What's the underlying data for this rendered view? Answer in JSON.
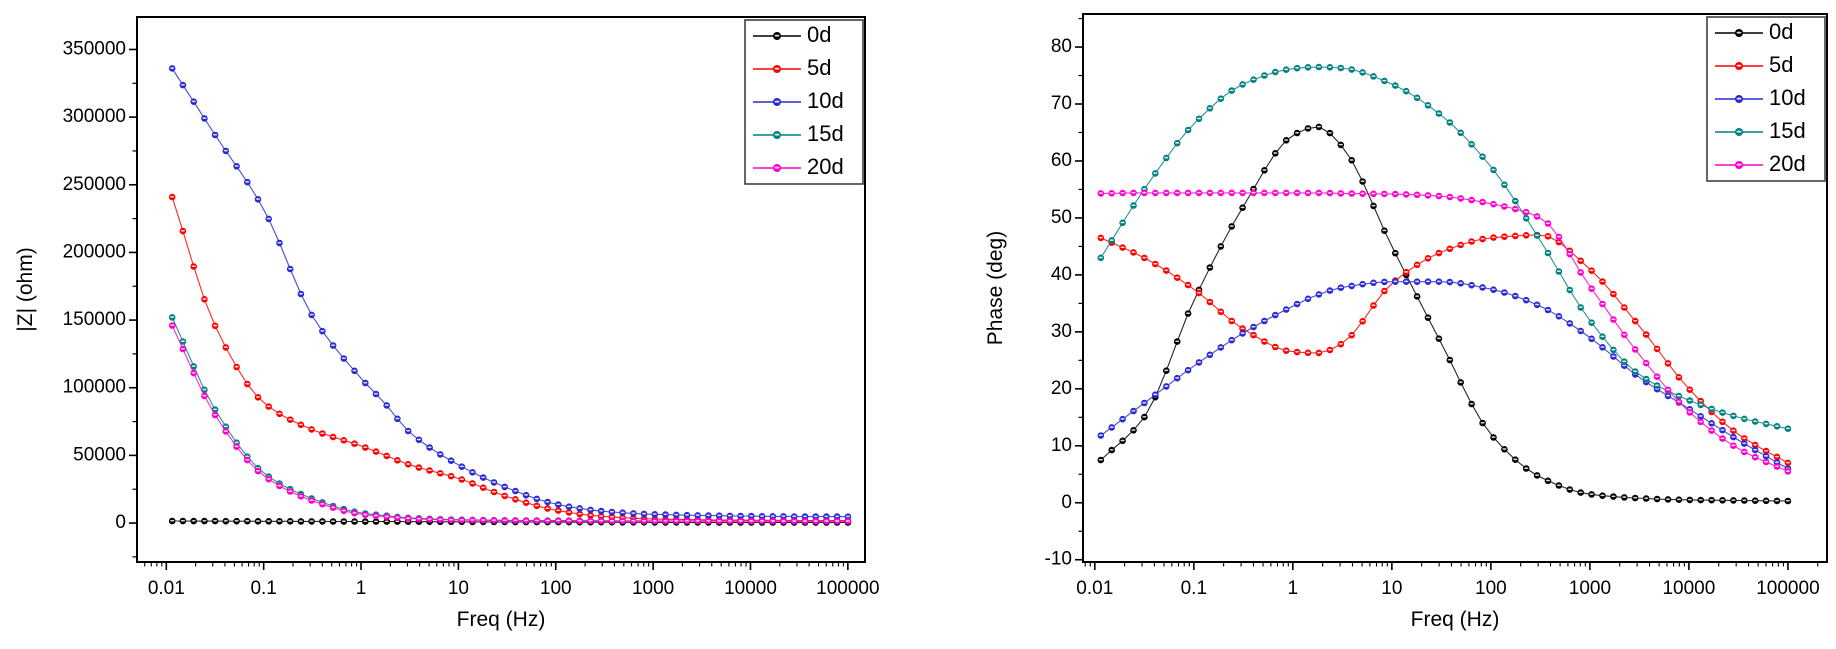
{
  "figure": {
    "background": "#ffffff",
    "series_labels": [
      "0d",
      "5d",
      "10d",
      "15d",
      "20d"
    ],
    "series_colors": [
      "#000000",
      "#ff0000",
      "#2a2ad0",
      "#008080",
      "#ff00cc"
    ]
  },
  "chart_data": [
    {
      "type": "line",
      "title": "",
      "xlabel": "Freq (Hz)",
      "ylabel": "|Z| (ohm)",
      "xscale": "log",
      "xlim": [
        0.005,
        150000
      ],
      "ylim": [
        -28800,
        374000
      ],
      "xticks": [
        0.01,
        0.1,
        1,
        10,
        100,
        1000,
        10000,
        100000
      ],
      "yticks": [
        0,
        50000,
        100000,
        150000,
        200000,
        250000,
        300000,
        350000
      ],
      "grid": false,
      "legend_position": "top-right",
      "x": [
        0.0115,
        0.0316,
        0.1,
        0.316,
        1,
        1.78,
        3.16,
        10,
        31.6,
        100,
        316,
        1000,
        3160,
        10000,
        31600,
        100000
      ],
      "series": [
        {
          "name": "0d",
          "color": "#000000",
          "values": [
            1500,
            1400,
            1300,
            1200,
            1100,
            1050,
            1000,
            900,
            800,
            700,
            600,
            500,
            450,
            400,
            380,
            360
          ]
        },
        {
          "name": "5d",
          "color": "#ff0000",
          "values": [
            241000,
            146000,
            89000,
            69000,
            57000,
            50000,
            43000,
            33000,
            19500,
            9500,
            4800,
            3000,
            2400,
            2100,
            1900,
            1800
          ]
        },
        {
          "name": "10d",
          "color": "#2a2ad0",
          "values": [
            336000,
            287000,
            232000,
            153000,
            107000,
            88000,
            67000,
            43000,
            26000,
            14000,
            8600,
            6500,
            5600,
            5100,
            4800,
            4700
          ]
        },
        {
          "name": "15d",
          "color": "#008080",
          "values": [
            152000,
            84000,
            37000,
            18000,
            7500,
            5500,
            3800,
            2500,
            2000,
            1800,
            1700,
            1600,
            1550,
            1500,
            1450,
            1400
          ]
        },
        {
          "name": "20d",
          "color": "#ff00cc",
          "values": [
            146000,
            80000,
            35000,
            16500,
            6500,
            4800,
            3300,
            2200,
            1850,
            1650,
            1550,
            1450,
            1400,
            1350,
            1300,
            1250
          ]
        }
      ]
    },
    {
      "type": "line",
      "title": "",
      "xlabel": "Freq (Hz)",
      "ylabel": "Phase (deg)",
      "xscale": "log",
      "xlim": [
        0.0076,
        248000
      ],
      "ylim": [
        -10.4,
        85.8
      ],
      "xticks": [
        0.01,
        0.1,
        1,
        10,
        100,
        1000,
        10000,
        100000
      ],
      "yticks": [
        -10,
        0,
        10,
        20,
        30,
        40,
        50,
        60,
        70,
        80
      ],
      "grid": false,
      "legend_position": "top-right",
      "x": [
        0.0115,
        0.0316,
        0.1,
        0.316,
        1,
        1.78,
        3.16,
        10,
        31.6,
        100,
        316,
        1000,
        3160,
        10000,
        31600,
        100000
      ],
      "series": [
        {
          "name": "0d",
          "color": "#000000",
          "values": [
            7.5,
            15,
            35.5,
            52,
            64.5,
            66,
            62.5,
            45,
            28,
            12,
            4.5,
            1.5,
            0.8,
            0.5,
            0.4,
            0.3
          ]
        },
        {
          "name": "5d",
          "color": "#ff0000",
          "values": [
            46.5,
            43,
            37.5,
            30.5,
            26.5,
            26.3,
            28,
            38.5,
            44,
            46.5,
            47,
            41,
            31,
            20,
            12,
            7
          ]
        },
        {
          "name": "10d",
          "color": "#2a2ad0",
          "values": [
            11.8,
            17.5,
            24,
            29.8,
            34.5,
            36.5,
            37.8,
            38.8,
            38.8,
            37.5,
            34.5,
            29,
            22,
            16.5,
            11,
            6
          ]
        },
        {
          "name": "15d",
          "color": "#008080",
          "values": [
            43,
            55,
            66.5,
            73.5,
            76.2,
            76.5,
            76.3,
            73.5,
            68,
            59,
            46,
            32,
            22.5,
            18,
            15,
            13
          ]
        },
        {
          "name": "20d",
          "color": "#ff00cc",
          "values": [
            54.3,
            54.4,
            54.4,
            54.4,
            54.4,
            54.4,
            54.3,
            54.2,
            53.8,
            52.5,
            50,
            38,
            26,
            16,
            9.5,
            5.5
          ]
        }
      ]
    }
  ]
}
